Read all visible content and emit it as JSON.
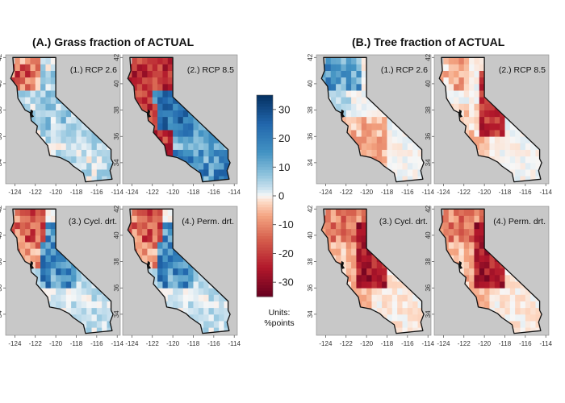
{
  "sections": [
    {
      "id": "A",
      "title": "(A.) Grass fraction of ACTUAL",
      "panels": [
        {
          "label": "(1.) RCP 2.6",
          "pattern": "grass_rcp26"
        },
        {
          "label": "(2.) RCP 8.5",
          "pattern": "grass_rcp85"
        },
        {
          "label": "(3.) Cycl. drt.",
          "pattern": "grass_cycl"
        },
        {
          "label": "(4.) Perm. drt.",
          "pattern": "grass_perm"
        }
      ]
    },
    {
      "id": "B",
      "title": "(B.) Tree fraction of ACTUAL",
      "panels": [
        {
          "label": "(1.) RCP 2.6",
          "pattern": "tree_rcp26"
        },
        {
          "label": "(2.) RCP 8.5",
          "pattern": "tree_rcp85"
        },
        {
          "label": "(3.) Cycl. drt.",
          "pattern": "tree_cycl"
        },
        {
          "label": "(4.) Perm. drt.",
          "pattern": "tree_perm"
        }
      ]
    }
  ],
  "axes": {
    "x_ticks": [
      "-124",
      "-122",
      "-120",
      "-118",
      "-116",
      "-114"
    ],
    "y_ticks": [
      "34",
      "36",
      "38",
      "40",
      "42"
    ]
  },
  "colorbar": {
    "ticks": [
      "30",
      "20",
      "10",
      "0",
      "-10",
      "-20",
      "-30"
    ],
    "range": [
      -35,
      35
    ],
    "units_line1": "Units:",
    "units_line2": "%points"
  },
  "colors": {
    "background": "#c8c8c8",
    "outline": "#111111",
    "negative_strong": "#b2182b",
    "neutral": "#f7f7f7",
    "positive_strong": "#2166ac"
  }
}
